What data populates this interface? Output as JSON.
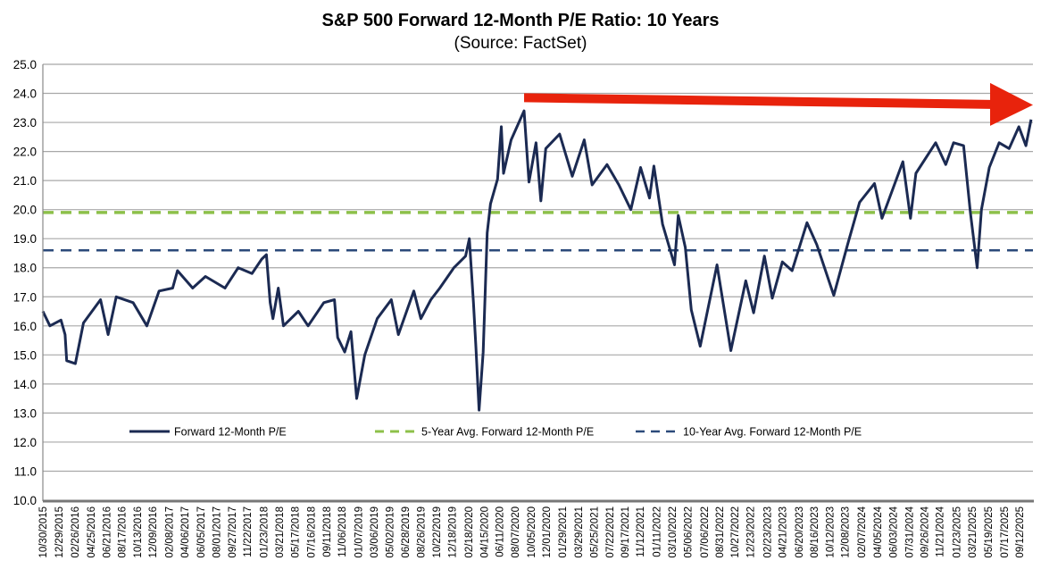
{
  "chart_data": {
    "type": "line",
    "title": "S&P 500 Forward 12-Month P/E Ratio: 10 Years",
    "subtitle": "(Source: FactSet)",
    "xlabel": "",
    "ylabel": "",
    "ylim": [
      10,
      25
    ],
    "yticks": [
      "10.0",
      "11.0",
      "12.0",
      "13.0",
      "14.0",
      "15.0",
      "16.0",
      "17.0",
      "18.0",
      "19.0",
      "20.0",
      "21.0",
      "22.0",
      "23.0",
      "24.0",
      "25.0"
    ],
    "xlim": [
      "2015-10-30",
      "2025-10-31"
    ],
    "xticks": [
      "10/30/2015",
      "12/29/2015",
      "02/26/2016",
      "04/25/2016",
      "06/21/2016",
      "08/17/2016",
      "10/13/2016",
      "12/09/2016",
      "02/08/2017",
      "04/06/2017",
      "06/05/2017",
      "08/01/2017",
      "09/27/2017",
      "11/22/2017",
      "01/23/2018",
      "03/21/2018",
      "05/17/2018",
      "07/16/2018",
      "09/11/2018",
      "11/06/2018",
      "01/07/2019",
      "03/06/2019",
      "05/02/2019",
      "06/28/2019",
      "08/26/2019",
      "10/22/2019",
      "12/18/2019",
      "02/18/2020",
      "04/15/2020",
      "06/11/2020",
      "08/07/2020",
      "10/05/2020",
      "12/01/2020",
      "01/29/2021",
      "03/29/2021",
      "05/25/2021",
      "07/22/2021",
      "09/17/2021",
      "11/12/2021",
      "01/11/2022",
      "03/10/2022",
      "05/06/2022",
      "07/06/2022",
      "08/31/2022",
      "10/27/2022",
      "12/23/2022",
      "02/23/2023",
      "04/21/2023",
      "06/20/2023",
      "08/16/2023",
      "10/12/2023",
      "12/08/2023",
      "02/07/2024",
      "04/05/2024",
      "06/03/2024",
      "07/31/2024",
      "09/26/2024",
      "11/21/2024",
      "01/23/2025",
      "03/21/2025",
      "05/19/2025",
      "07/17/2025",
      "09/12/2025"
    ],
    "grid": true,
    "legend_position": "bottom-inside",
    "series": [
      {
        "name": "Forward 12-Month P/E",
        "color": "#1b2a52",
        "style": "solid",
        "points": [
          [
            "2015-10-30",
            16.5
          ],
          [
            "2015-11-25",
            16.0
          ],
          [
            "2016-01-05",
            16.2
          ],
          [
            "2016-01-20",
            15.7
          ],
          [
            "2016-01-26",
            14.8
          ],
          [
            "2016-02-27",
            14.7
          ],
          [
            "2016-03-28",
            16.1
          ],
          [
            "2016-05-30",
            16.9
          ],
          [
            "2016-06-27",
            15.7
          ],
          [
            "2016-07-27",
            17.0
          ],
          [
            "2016-09-27",
            16.8
          ],
          [
            "2016-11-17",
            16.0
          ],
          [
            "2017-01-01",
            17.2
          ],
          [
            "2017-02-20",
            17.3
          ],
          [
            "2017-03-10",
            17.9
          ],
          [
            "2017-05-05",
            17.3
          ],
          [
            "2017-06-21",
            17.7
          ],
          [
            "2017-09-01",
            17.3
          ],
          [
            "2017-10-20",
            18.0
          ],
          [
            "2017-12-10",
            17.8
          ],
          [
            "2018-01-15",
            18.3
          ],
          [
            "2018-02-01",
            18.45
          ],
          [
            "2018-02-15",
            16.8
          ],
          [
            "2018-02-25",
            16.25
          ],
          [
            "2018-03-17",
            17.3
          ],
          [
            "2018-04-05",
            16.0
          ],
          [
            "2018-05-30",
            16.5
          ],
          [
            "2018-07-05",
            16.0
          ],
          [
            "2018-09-01",
            16.8
          ],
          [
            "2018-10-10",
            16.9
          ],
          [
            "2018-10-22",
            15.6
          ],
          [
            "2018-11-17",
            15.1
          ],
          [
            "2018-12-10",
            15.8
          ],
          [
            "2018-12-31",
            13.5
          ],
          [
            "2019-01-30",
            15.0
          ],
          [
            "2019-03-17",
            16.25
          ],
          [
            "2019-05-08",
            16.9
          ],
          [
            "2019-06-03",
            15.7
          ],
          [
            "2019-07-30",
            17.2
          ],
          [
            "2019-08-25",
            16.25
          ],
          [
            "2019-10-01",
            16.9
          ],
          [
            "2019-11-03",
            17.3
          ],
          [
            "2019-12-25",
            18.0
          ],
          [
            "2020-02-06",
            18.4
          ],
          [
            "2020-02-20",
            19.0
          ],
          [
            "2020-03-06",
            16.8
          ],
          [
            "2020-03-15",
            15.3
          ],
          [
            "2020-03-27",
            13.1
          ],
          [
            "2020-04-11",
            15.1
          ],
          [
            "2020-04-26",
            19.2
          ],
          [
            "2020-05-08",
            20.2
          ],
          [
            "2020-06-03",
            21.05
          ],
          [
            "2020-06-17",
            22.85
          ],
          [
            "2020-06-25",
            21.25
          ],
          [
            "2020-07-23",
            22.4
          ],
          [
            "2020-09-09",
            23.4
          ],
          [
            "2020-09-27",
            20.95
          ],
          [
            "2020-10-23",
            22.3
          ],
          [
            "2020-11-10",
            20.3
          ],
          [
            "2020-11-28",
            22.1
          ],
          [
            "2021-01-18",
            22.6
          ],
          [
            "2021-03-06",
            21.15
          ],
          [
            "2021-04-19",
            22.4
          ],
          [
            "2021-05-18",
            20.85
          ],
          [
            "2021-07-12",
            21.55
          ],
          [
            "2021-08-25",
            20.85
          ],
          [
            "2021-10-08",
            20.0
          ],
          [
            "2021-11-13",
            21.45
          ],
          [
            "2021-12-16",
            20.4
          ],
          [
            "2022-01-01",
            21.5
          ],
          [
            "2022-02-02",
            19.5
          ],
          [
            "2022-03-18",
            18.1
          ],
          [
            "2022-04-01",
            19.8
          ],
          [
            "2022-04-27",
            18.7
          ],
          [
            "2022-05-19",
            16.55
          ],
          [
            "2022-06-21",
            15.3
          ],
          [
            "2022-08-22",
            18.1
          ],
          [
            "2022-10-12",
            15.15
          ],
          [
            "2022-12-06",
            17.55
          ],
          [
            "2023-01-04",
            16.45
          ],
          [
            "2023-02-13",
            18.4
          ],
          [
            "2023-03-14",
            16.95
          ],
          [
            "2023-04-20",
            18.2
          ],
          [
            "2023-05-26",
            17.9
          ],
          [
            "2023-07-20",
            19.55
          ],
          [
            "2023-08-25",
            18.8
          ],
          [
            "2023-10-27",
            17.05
          ],
          [
            "2023-12-17",
            18.8
          ],
          [
            "2024-01-30",
            20.25
          ],
          [
            "2024-03-25",
            20.9
          ],
          [
            "2024-04-22",
            19.7
          ],
          [
            "2024-07-08",
            21.65
          ],
          [
            "2024-08-05",
            19.7
          ],
          [
            "2024-08-25",
            21.25
          ],
          [
            "2024-11-06",
            22.3
          ],
          [
            "2024-12-13",
            21.55
          ],
          [
            "2025-01-11",
            22.3
          ],
          [
            "2025-02-17",
            22.2
          ],
          [
            "2025-03-14",
            19.9
          ],
          [
            "2025-04-08",
            18.0
          ],
          [
            "2025-04-24",
            20.0
          ],
          [
            "2025-05-23",
            21.45
          ],
          [
            "2025-06-28",
            22.3
          ],
          [
            "2025-08-04",
            22.1
          ],
          [
            "2025-09-09",
            22.85
          ],
          [
            "2025-10-05",
            22.2
          ],
          [
            "2025-10-24",
            23.1
          ]
        ]
      },
      {
        "name": "5-Year Avg. Forward 12-Month P/E",
        "color": "#8dc04a",
        "style": "dashed",
        "value": 19.9
      },
      {
        "name": "10-Year Avg. Forward 12-Month P/E",
        "color": "#2b4a7a",
        "style": "dashed",
        "value": 18.6
      }
    ],
    "annotations": [
      {
        "type": "arrow",
        "color": "#e8230c",
        "from": [
          "2020-09-09",
          23.85
        ],
        "to": [
          "2025-10-31",
          23.6
        ]
      }
    ]
  }
}
